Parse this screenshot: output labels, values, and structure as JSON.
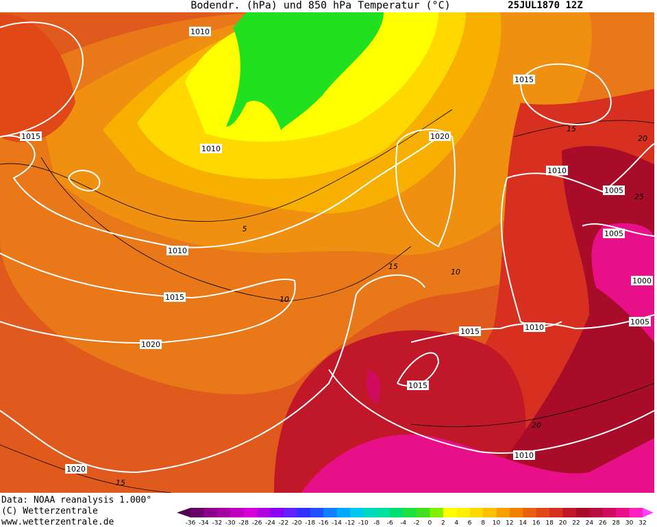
{
  "header": {
    "title": "Bodendr. (hPa) und 850 hPa Temperatur (°C)",
    "date": "25JUL1870 12Z"
  },
  "map": {
    "isobar_labels": [
      "1010",
      "1015",
      "1015",
      "1010",
      "1020",
      "1010",
      "1005",
      "1005",
      "1010",
      "1000",
      "1015",
      "1005",
      "1015",
      "1010",
      "1020",
      "1015",
      "1010",
      "1020"
    ],
    "temperature_labels": [
      "5",
      "10",
      "15",
      "20",
      "25",
      "15",
      "10",
      "20",
      "15"
    ]
  },
  "footer": {
    "source": "Data: NOAA reanalysis 1.000°",
    "copyright": "(C) Wetterzentrale",
    "url": "www.wetterzentrale.de"
  },
  "legend": {
    "ticks": [
      -36,
      -34,
      -32,
      -30,
      -28,
      -26,
      -24,
      -22,
      -20,
      -18,
      -16,
      -14,
      -12,
      -10,
      -8,
      -6,
      -4,
      -2,
      0,
      2,
      4,
      6,
      8,
      10,
      12,
      14,
      16,
      18,
      20,
      22,
      24,
      26,
      28,
      30,
      32
    ],
    "colors": [
      "#6a006a",
      "#8a008a",
      "#a400a4",
      "#c000c0",
      "#d800d8",
      "#b000e0",
      "#8a00f0",
      "#6020ff",
      "#3030ff",
      "#2050ff",
      "#1080ff",
      "#00a8ff",
      "#00c8f0",
      "#00d8c0",
      "#00e0a0",
      "#00e070",
      "#20e040",
      "#40e020",
      "#80f000",
      "#ffff00",
      "#fff000",
      "#ffd800",
      "#ffc000",
      "#f8a000",
      "#f08000",
      "#e86010",
      "#e04818",
      "#d83020",
      "#c01828",
      "#a80c28",
      "#b80c40",
      "#d00c60",
      "#e81088",
      "#ff20c0",
      "#ff40e8"
    ],
    "arrow_colors": [
      "#500050",
      "#ff40ff"
    ]
  }
}
